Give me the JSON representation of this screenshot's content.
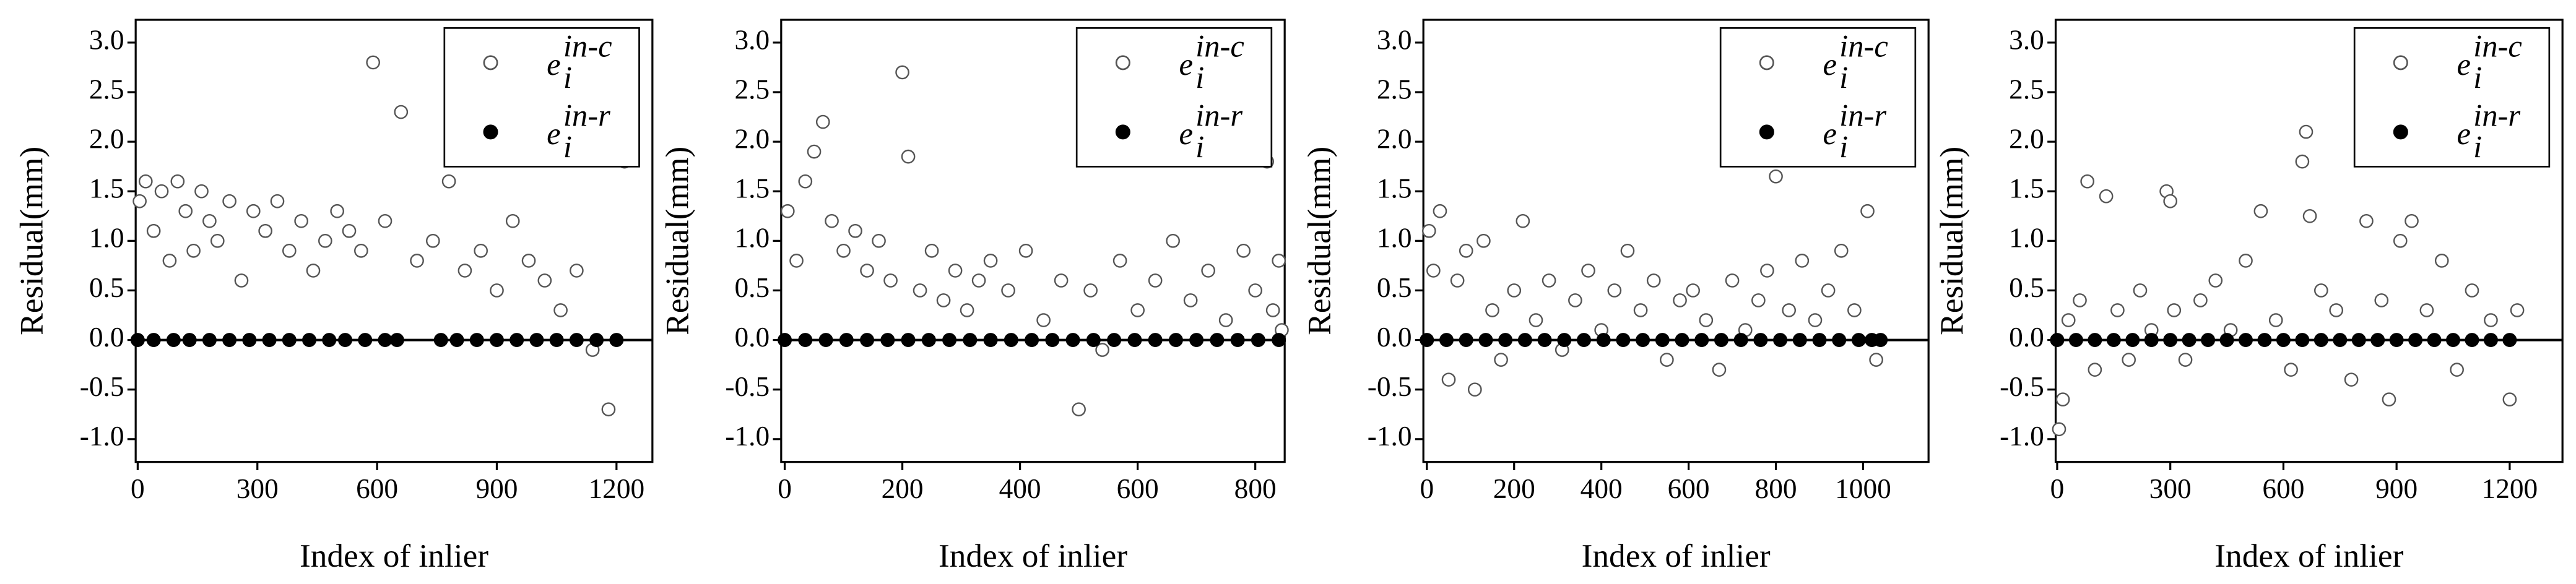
{
  "chart_data": [
    {
      "type": "scatter",
      "xlabel": "Index of inlier",
      "ylabel": "Residual(mm)",
      "xlim": [
        -5,
        1290
      ],
      "ylim": [
        -1.23,
        3.23
      ],
      "xticks": [
        0,
        300,
        600,
        900,
        1200
      ],
      "yticks": [
        {
          "value": -1,
          "label": "-1.0"
        },
        {
          "value": -0.5,
          "label": "-0.5"
        },
        {
          "value": 0,
          "label": "0.0"
        },
        {
          "value": 0.5,
          "label": "0.5"
        },
        {
          "value": 1,
          "label": "1.0"
        },
        {
          "value": 1.5,
          "label": "1.5"
        },
        {
          "value": 2,
          "label": "2.0"
        },
        {
          "value": 2.5,
          "label": "2.5"
        },
        {
          "value": 3,
          "label": "3.0"
        }
      ],
      "hline": 0,
      "legend": "upper right",
      "series": [
        {
          "name": "e",
          "name_sub": "i",
          "name_sup": "in-c",
          "color": "#555555",
          "marker": "open",
          "x": [
            5,
            20,
            40,
            60,
            80,
            100,
            120,
            140,
            160,
            180,
            200,
            230,
            260,
            290,
            320,
            350,
            380,
            410,
            440,
            470,
            500,
            530,
            560,
            590,
            620,
            660,
            700,
            740,
            780,
            820,
            860,
            900,
            940,
            980,
            1020,
            1060,
            1100,
            1140,
            1180,
            1220
          ],
          "values": [
            1.4,
            1.6,
            1.1,
            1.5,
            0.8,
            1.6,
            1.3,
            0.9,
            1.5,
            1.2,
            1.0,
            1.4,
            0.6,
            1.3,
            1.1,
            1.4,
            0.9,
            1.2,
            0.7,
            1.0,
            1.3,
            1.1,
            0.9,
            2.8,
            1.2,
            2.3,
            0.8,
            1.0,
            1.6,
            0.7,
            0.9,
            0.5,
            1.2,
            0.8,
            0.6,
            0.3,
            0.7,
            -0.1,
            -0.7,
            1.8
          ]
        },
        {
          "name": "e",
          "name_sub": "i",
          "name_sup": "in-r",
          "color": "#000000",
          "marker": "filled",
          "x": [
            0,
            40,
            90,
            130,
            180,
            230,
            280,
            330,
            380,
            430,
            480,
            520,
            570,
            620,
            650,
            760,
            800,
            850,
            900,
            950,
            1000,
            1050,
            1100,
            1150,
            1200
          ],
          "values": [
            0,
            0,
            0,
            0,
            0,
            0,
            0,
            0,
            0,
            0,
            0,
            0,
            0,
            0,
            0,
            0,
            0,
            0,
            0,
            0,
            0,
            0,
            0,
            0,
            0
          ]
        }
      ]
    },
    {
      "type": "scatter",
      "xlabel": "Index of inlier",
      "ylabel": "Residual(mm)",
      "xlim": [
        -6,
        850
      ],
      "ylim": [
        -1.23,
        3.23
      ],
      "xticks": [
        0,
        200,
        400,
        600,
        800
      ],
      "yticks": [
        {
          "value": -1,
          "label": "-1.0"
        },
        {
          "value": -0.5,
          "label": "-0.5"
        },
        {
          "value": 0,
          "label": "0.0"
        },
        {
          "value": 0.5,
          "label": "0.5"
        },
        {
          "value": 1,
          "label": "1.0"
        },
        {
          "value": 1.5,
          "label": "1.5"
        },
        {
          "value": 2,
          "label": "2.0"
        },
        {
          "value": 2.5,
          "label": "2.5"
        },
        {
          "value": 3,
          "label": "3.0"
        }
      ],
      "hline": 0,
      "legend": "upper right",
      "series": [
        {
          "name": "e",
          "name_sub": "i",
          "name_sup": "in-c",
          "color": "#555555",
          "marker": "open",
          "x": [
            5,
            20,
            35,
            50,
            65,
            80,
            100,
            120,
            140,
            160,
            180,
            200,
            210,
            230,
            250,
            270,
            290,
            310,
            330,
            350,
            380,
            410,
            440,
            470,
            500,
            520,
            540,
            570,
            600,
            630,
            660,
            690,
            720,
            750,
            780,
            800,
            820,
            830,
            840,
            845
          ],
          "values": [
            1.3,
            0.8,
            1.6,
            1.9,
            2.2,
            1.2,
            0.9,
            1.1,
            0.7,
            1.0,
            0.6,
            2.7,
            1.85,
            0.5,
            0.9,
            0.4,
            0.7,
            0.3,
            0.6,
            0.8,
            0.5,
            0.9,
            0.2,
            0.6,
            -0.7,
            0.5,
            -0.1,
            0.8,
            0.3,
            0.6,
            1.0,
            0.4,
            0.7,
            0.2,
            0.9,
            0.5,
            1.8,
            0.3,
            0.8,
            0.1
          ]
        },
        {
          "name": "e",
          "name_sub": "i",
          "name_sup": "in-r",
          "color": "#000000",
          "marker": "filled",
          "x": [
            0,
            35,
            70,
            105,
            140,
            175,
            210,
            245,
            280,
            315,
            350,
            385,
            420,
            455,
            490,
            525,
            560,
            595,
            630,
            665,
            700,
            735,
            770,
            805,
            840
          ],
          "values": [
            0,
            0,
            0,
            0,
            0,
            0,
            0,
            0,
            0,
            0,
            0,
            0,
            0,
            0,
            0,
            0,
            0,
            0,
            0,
            0,
            0,
            0,
            0,
            0,
            0
          ]
        }
      ]
    },
    {
      "type": "scatter",
      "xlabel": "Index of inlier",
      "ylabel": "Residual(mm)",
      "xlim": [
        -8,
        1150
      ],
      "ylim": [
        -1.23,
        3.23
      ],
      "xticks": [
        0,
        200,
        400,
        600,
        800,
        1000
      ],
      "yticks": [
        {
          "value": -1,
          "label": "-1.0"
        },
        {
          "value": -0.5,
          "label": "-0.5"
        },
        {
          "value": 0,
          "label": "0.0"
        },
        {
          "value": 0.5,
          "label": "0.5"
        },
        {
          "value": 1,
          "label": "1.0"
        },
        {
          "value": 1.5,
          "label": "1.5"
        },
        {
          "value": 2,
          "label": "2.0"
        },
        {
          "value": 2.5,
          "label": "2.5"
        },
        {
          "value": 3,
          "label": "3.0"
        }
      ],
      "hline": 0,
      "legend": "upper right",
      "series": [
        {
          "name": "e",
          "name_sub": "i",
          "name_sup": "in-c",
          "color": "#555555",
          "marker": "open",
          "x": [
            5,
            15,
            30,
            50,
            70,
            90,
            110,
            130,
            150,
            170,
            200,
            220,
            250,
            280,
            310,
            340,
            370,
            400,
            430,
            460,
            490,
            520,
            550,
            580,
            610,
            640,
            670,
            700,
            730,
            760,
            780,
            800,
            830,
            860,
            890,
            920,
            950,
            980,
            1010,
            1030
          ],
          "values": [
            1.1,
            0.7,
            1.3,
            -0.4,
            0.6,
            0.9,
            -0.5,
            1.0,
            0.3,
            -0.2,
            0.5,
            1.2,
            0.2,
            0.6,
            -0.1,
            0.4,
            0.7,
            0.1,
            0.5,
            0.9,
            0.3,
            0.6,
            -0.2,
            0.4,
            0.5,
            0.2,
            -0.3,
            0.6,
            0.1,
            0.4,
            0.7,
            1.65,
            0.3,
            0.8,
            0.2,
            0.5,
            0.9,
            0.3,
            1.3,
            -0.2
          ]
        },
        {
          "name": "e",
          "name_sub": "i",
          "name_sup": "in-r",
          "color": "#000000",
          "marker": "filled",
          "x": [
            0,
            45,
            90,
            135,
            180,
            225,
            270,
            315,
            360,
            405,
            450,
            495,
            540,
            585,
            630,
            675,
            720,
            765,
            810,
            855,
            900,
            945,
            990,
            1020,
            1040
          ],
          "values": [
            0,
            0,
            0,
            0,
            0,
            0,
            0,
            0,
            0,
            0,
            0,
            0,
            0,
            0,
            0,
            0,
            0,
            0,
            0,
            0,
            0,
            0,
            0,
            0,
            0
          ]
        }
      ]
    },
    {
      "type": "scatter",
      "xlabel": "Index of inlier",
      "ylabel": "Residual(mm)",
      "xlim": [
        -4,
        1340
      ],
      "ylim": [
        -1.23,
        3.23
      ],
      "xticks": [
        0,
        300,
        600,
        900,
        1200
      ],
      "yticks": [
        {
          "value": -1,
          "label": "-1.0"
        },
        {
          "value": -0.5,
          "label": "-0.5"
        },
        {
          "value": 0,
          "label": "0.0"
        },
        {
          "value": 0.5,
          "label": "0.5"
        },
        {
          "value": 1,
          "label": "1.0"
        },
        {
          "value": 1.5,
          "label": "1.5"
        },
        {
          "value": 2,
          "label": "2.0"
        },
        {
          "value": 2.5,
          "label": "2.5"
        },
        {
          "value": 3,
          "label": "3.0"
        }
      ],
      "hline": 0,
      "legend": "upper right",
      "series": [
        {
          "name": "e",
          "name_sub": "i",
          "name_sup": "in-c",
          "color": "#555555",
          "marker": "open",
          "x": [
            5,
            15,
            30,
            60,
            80,
            100,
            130,
            160,
            190,
            220,
            250,
            290,
            300,
            310,
            340,
            380,
            420,
            460,
            500,
            540,
            580,
            620,
            650,
            660,
            670,
            700,
            740,
            780,
            820,
            860,
            880,
            910,
            940,
            980,
            1020,
            1060,
            1100,
            1150,
            1200,
            1220
          ],
          "values": [
            -0.9,
            -0.6,
            0.2,
            0.4,
            1.6,
            -0.3,
            1.45,
            0.3,
            -0.2,
            0.5,
            0.1,
            1.5,
            1.4,
            0.3,
            -0.2,
            0.4,
            0.6,
            0.1,
            0.8,
            1.3,
            0.2,
            -0.3,
            1.8,
            2.1,
            1.25,
            0.5,
            0.3,
            -0.4,
            1.2,
            0.4,
            -0.6,
            1.0,
            1.2,
            0.3,
            0.8,
            -0.3,
            0.5,
            0.2,
            -0.6,
            0.3
          ]
        },
        {
          "name": "e",
          "name_sub": "i",
          "name_sup": "in-r",
          "color": "#000000",
          "marker": "filled",
          "x": [
            0,
            50,
            100,
            150,
            200,
            250,
            300,
            350,
            400,
            450,
            500,
            550,
            600,
            650,
            700,
            750,
            800,
            850,
            900,
            950,
            1000,
            1050,
            1100,
            1150,
            1200
          ],
          "values": [
            0,
            0,
            0,
            0,
            0,
            0,
            0,
            0,
            0,
            0,
            0,
            0,
            0,
            0,
            0,
            0,
            0,
            0,
            0,
            0,
            0,
            0,
            0,
            0,
            0
          ]
        }
      ]
    }
  ]
}
